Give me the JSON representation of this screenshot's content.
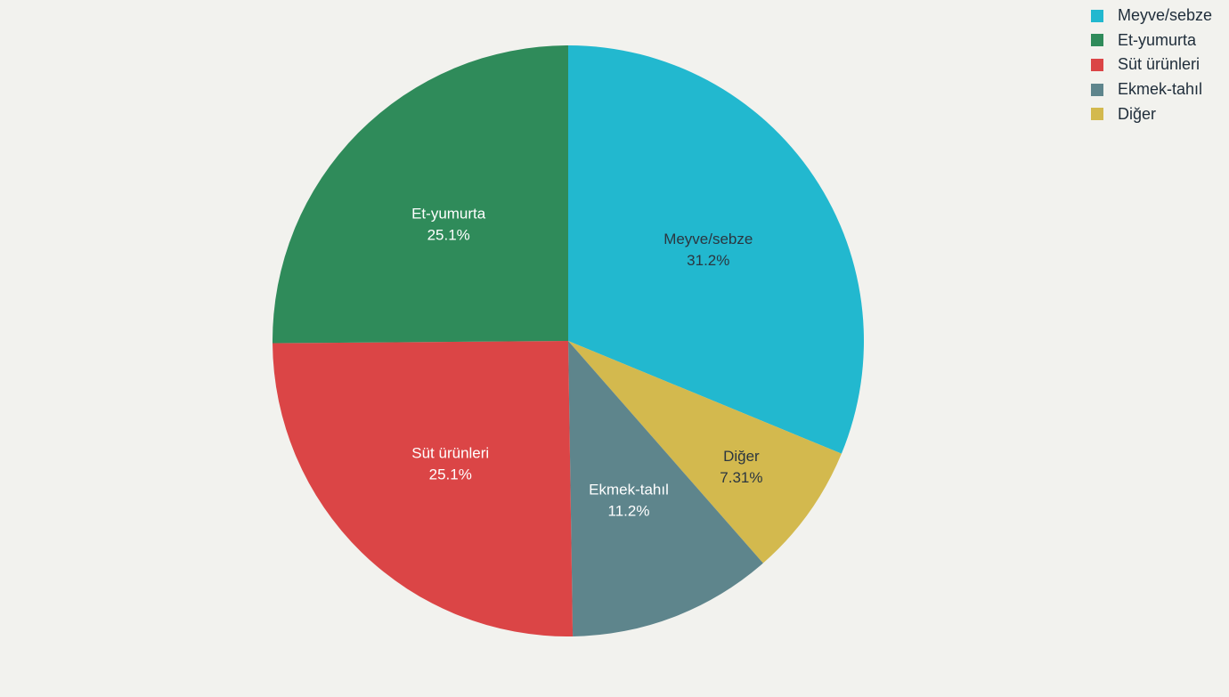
{
  "chart_data": {
    "type": "pie",
    "categories": [
      "Meyve/sebze",
      "Et-yumurta",
      "Süt ürünleri",
      "Ekmek-tahıl",
      "Diğer"
    ],
    "values": [
      31.2,
      25.1,
      25.1,
      11.2,
      7.31
    ],
    "labels_text": [
      "31.2%",
      "25.1%",
      "25.1%",
      "11.2%",
      "7.31%"
    ],
    "colors": [
      "#22b8cf",
      "#2f8b5a",
      "#db4546",
      "#5e858c",
      "#d3b94e"
    ],
    "label_colors": [
      "#2b3640",
      "#ffffff",
      "#ffffff",
      "#ffffff",
      "#2b3640"
    ],
    "slice_order": [
      0,
      4,
      3,
      2,
      1
    ],
    "direction": "clockwise-from-top",
    "legend_position": "top-right"
  }
}
